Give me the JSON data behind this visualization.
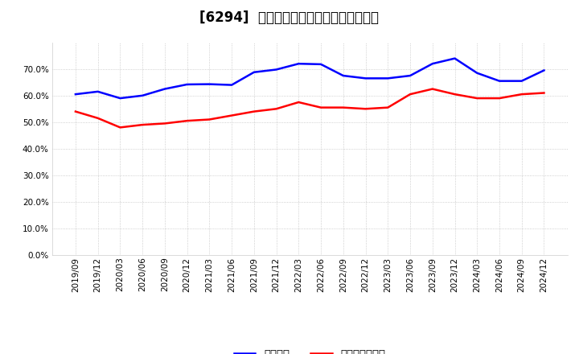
{
  "title": "[6294]  固定比率、固定長期適合率の推移",
  "x_labels": [
    "2019/09",
    "2019/12",
    "2020/03",
    "2020/06",
    "2020/09",
    "2020/12",
    "2021/03",
    "2021/06",
    "2021/09",
    "2021/12",
    "2022/03",
    "2022/06",
    "2022/09",
    "2022/12",
    "2023/03",
    "2023/06",
    "2023/09",
    "2023/12",
    "2024/03",
    "2024/06",
    "2024/09",
    "2024/12"
  ],
  "fixed_ratio": [
    60.5,
    61.5,
    59.0,
    60.0,
    62.5,
    64.2,
    64.3,
    64.0,
    68.8,
    69.8,
    72.0,
    71.8,
    67.5,
    66.5,
    66.5,
    67.5,
    72.0,
    74.0,
    68.5,
    65.5,
    65.5,
    69.5
  ],
  "fixed_long_ratio": [
    54.0,
    51.5,
    48.0,
    49.0,
    49.5,
    50.5,
    51.0,
    52.5,
    54.0,
    55.0,
    57.5,
    55.5,
    55.5,
    55.0,
    55.5,
    60.5,
    62.5,
    60.5,
    59.0,
    59.0,
    60.5,
    61.0
  ],
  "blue_color": "#0000ff",
  "red_color": "#ff0000",
  "bg_color": "#ffffff",
  "plot_bg_color": "#ffffff",
  "grid_color": "#aaaaaa",
  "ylim_max": 80,
  "ytick_values": [
    0,
    10,
    20,
    30,
    40,
    50,
    60,
    70
  ],
  "legend_fixed": "固定比率",
  "legend_fixed_long": "固定長期適合率",
  "line_width": 1.8,
  "title_fontsize": 12,
  "tick_fontsize": 7.5,
  "legend_fontsize": 9.5
}
